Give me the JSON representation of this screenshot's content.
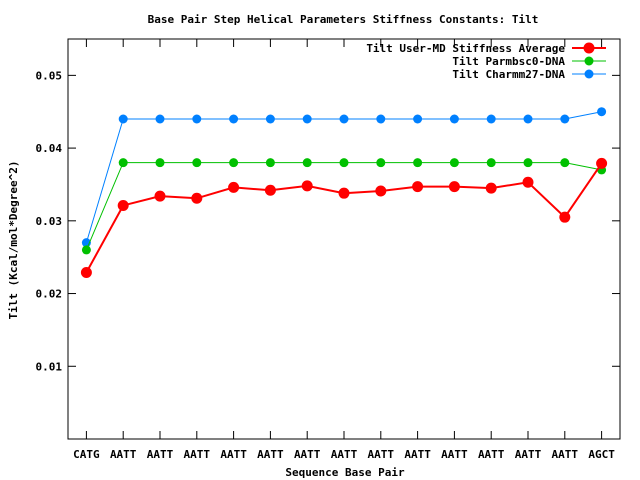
{
  "chart_data": {
    "type": "line",
    "title": "Base Pair Step Helical Parameters Stiffness Constants: Tilt",
    "xlabel": "Sequence Base Pair",
    "ylabel": "Tilt (Kcal/mol*Degree^2)",
    "categories": [
      "CATG",
      "AATT",
      "AATT",
      "AATT",
      "AATT",
      "AATT",
      "AATT",
      "AATT",
      "AATT",
      "AATT",
      "AATT",
      "AATT",
      "AATT",
      "AATT",
      "AGCT"
    ],
    "ylim": [
      0.0,
      0.055
    ],
    "yticks": [
      "0.01",
      "0.02",
      "0.03",
      "0.04",
      "0.05"
    ],
    "ytick_values": [
      0.01,
      0.02,
      0.03,
      0.04,
      0.05
    ],
    "legend_position": "top-right",
    "grid": false,
    "series": [
      {
        "name": "Tilt User-MD Stiffness Average",
        "color": "#ff0000",
        "values": [
          0.0229,
          0.0321,
          0.0334,
          0.0331,
          0.0346,
          0.0342,
          0.0348,
          0.0338,
          0.0341,
          0.0347,
          0.0347,
          0.0345,
          0.0353,
          0.0305,
          0.0379
        ]
      },
      {
        "name": "Tilt Parmbsc0-DNA",
        "color": "#00c000",
        "values": [
          0.026,
          0.038,
          0.038,
          0.038,
          0.038,
          0.038,
          0.038,
          0.038,
          0.038,
          0.038,
          0.038,
          0.038,
          0.038,
          0.038,
          0.037
        ]
      },
      {
        "name": "Tilt Charmm27-DNA",
        "color": "#0080ff",
        "values": [
          0.027,
          0.044,
          0.044,
          0.044,
          0.044,
          0.044,
          0.044,
          0.044,
          0.044,
          0.044,
          0.044,
          0.044,
          0.044,
          0.044,
          0.045
        ]
      }
    ]
  }
}
